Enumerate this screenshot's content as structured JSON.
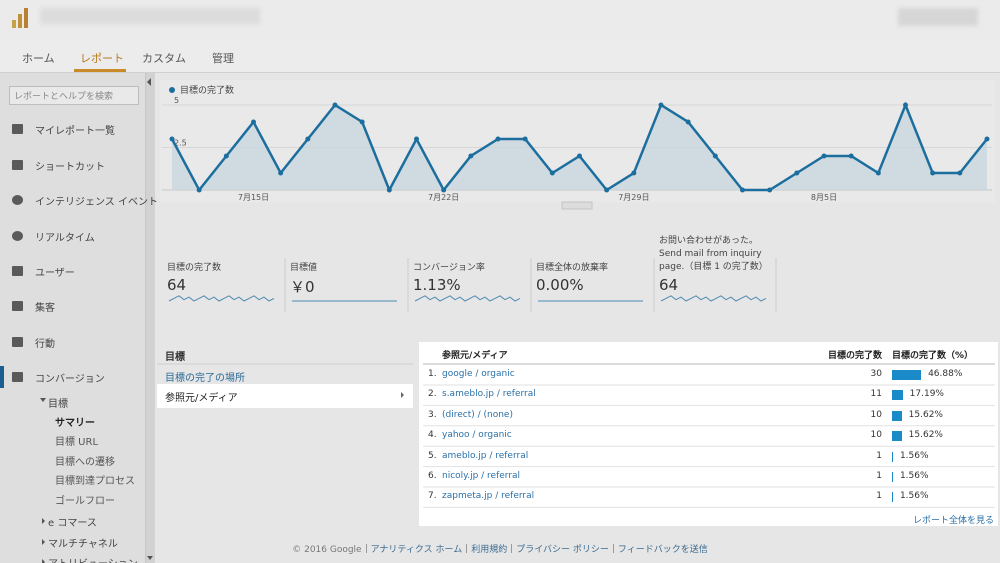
{
  "header": {
    "tabs": [
      "ホーム",
      "レポート",
      "カスタム",
      "管理"
    ],
    "active_tab": 1
  },
  "sidebar": {
    "search_placeholder": "レポートとヘルプを検索",
    "items": [
      "マイレポート一覧",
      "ショートカット",
      "インテリジェンス イベント",
      "リアルタイム",
      "ユーザー",
      "集客",
      "行動",
      "コンバージョン"
    ],
    "active_item": 7,
    "goals": {
      "label": "目標",
      "children": [
        "サマリー",
        "目標 URL",
        "目標への遷移",
        "目標到達プロセス",
        "ゴールフロー"
      ],
      "active_child": 0
    },
    "collapsed": [
      "e コマース",
      "マルチチャネル",
      "アトリビューション"
    ]
  },
  "chart_data": {
    "type": "line",
    "series": [
      {
        "name": "目標の完了数",
        "color": "#1c6e9e",
        "values": [
          3,
          0,
          2,
          4,
          1,
          3,
          5,
          4,
          0,
          3,
          0,
          2,
          3,
          3,
          1,
          2,
          0,
          1,
          5,
          4,
          2,
          0,
          0,
          1,
          2,
          2,
          1,
          5,
          1,
          1,
          3
        ]
      }
    ],
    "categories": [
      null,
      null,
      null,
      "7月15日",
      null,
      null,
      null,
      null,
      null,
      null,
      "7月22日",
      null,
      null,
      null,
      null,
      null,
      null,
      "7月29日",
      null,
      null,
      null,
      null,
      null,
      null,
      "8月5日",
      null,
      null,
      null,
      null,
      null,
      null
    ],
    "ylim": [
      0,
      5
    ],
    "yticks": [
      2.5,
      5
    ],
    "grid": true
  },
  "scorecards": [
    {
      "label": "目標の完了数",
      "value": "64"
    },
    {
      "label": "目標値",
      "value": "￥0"
    },
    {
      "label": "コンバージョン率",
      "value": "1.13%"
    },
    {
      "label": "目標全体の放棄率",
      "value": "0.00%"
    },
    {
      "label": "お問い合わせがあった。Send mail from inquiry page.（目標 1 の完了数）",
      "value": "64"
    }
  ],
  "left_panel": {
    "heading": "目標",
    "items": [
      "目標の完了の場所",
      "参照元/メディア"
    ],
    "selected": 1
  },
  "table": {
    "columns": [
      "参照元/メディア",
      "目標の完了数",
      "目標の完了数（%）"
    ],
    "rows": [
      {
        "rank": "1.",
        "source": "google / organic",
        "completions": 30,
        "share": 46.88,
        "share_label": "46.88%"
      },
      {
        "rank": "2.",
        "source": "s.ameblo.jp / referral",
        "completions": 11,
        "share": 17.19,
        "share_label": "17.19%"
      },
      {
        "rank": "3.",
        "source": "(direct) / (none)",
        "completions": 10,
        "share": 15.62,
        "share_label": "15.62%"
      },
      {
        "rank": "4.",
        "source": "yahoo / organic",
        "completions": 10,
        "share": 15.62,
        "share_label": "15.62%"
      },
      {
        "rank": "5.",
        "source": "ameblo.jp / referral",
        "completions": 1,
        "share": 1.56,
        "share_label": "1.56%"
      },
      {
        "rank": "6.",
        "source": "nicoly.jp / referral",
        "completions": 1,
        "share": 1.56,
        "share_label": "1.56%"
      },
      {
        "rank": "7.",
        "source": "zapmeta.jp / referral",
        "completions": 1,
        "share": 1.56,
        "share_label": "1.56%"
      }
    ],
    "footer_link": "レポート全体を見る"
  },
  "footer": {
    "copyright": "© 2016 Google",
    "links": [
      "アナリティクス ホーム",
      "利用規約",
      "プライバシー ポリシー",
      "フィードバックを送信"
    ]
  }
}
